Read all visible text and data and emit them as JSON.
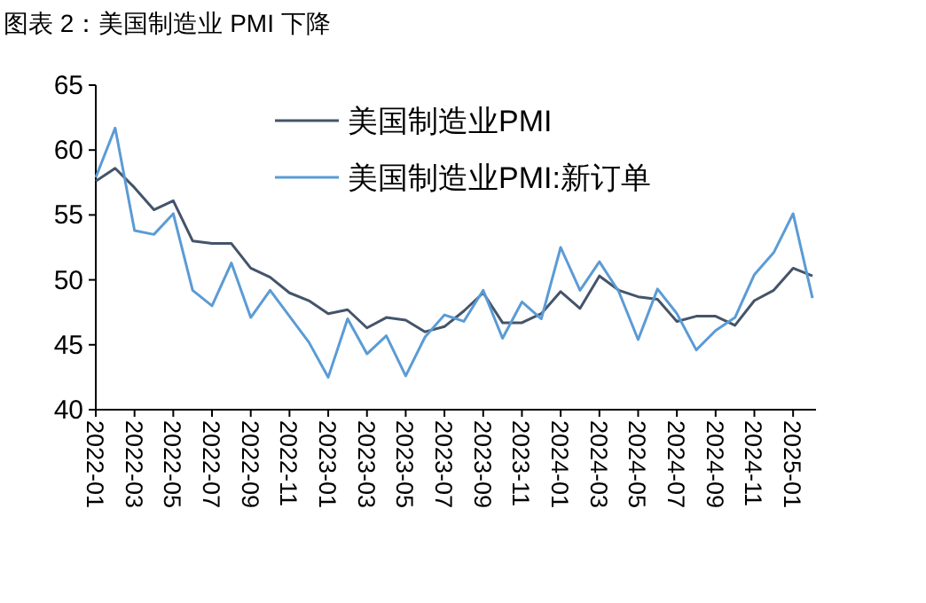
{
  "chart_data": {
    "type": "line",
    "title": "图表 2：美国制造业 PMI 下降",
    "categories": [
      "2022-01",
      null,
      "2022-03",
      null,
      "2022-05",
      null,
      "2022-07",
      null,
      "2022-09",
      null,
      "2022-11",
      null,
      "2023-01",
      null,
      "2023-03",
      null,
      "2023-05",
      null,
      "2023-07",
      null,
      "2023-09",
      null,
      "2023-11",
      null,
      "2024-01",
      null,
      "2024-03",
      null,
      "2024-05",
      null,
      "2024-07",
      null,
      "2024-09",
      null,
      "2024-11",
      null,
      "2025-01",
      null
    ],
    "series": [
      {
        "name": "美国制造业PMI",
        "color": "#44546a",
        "values": [
          57.6,
          58.6,
          57.1,
          55.4,
          56.1,
          53.0,
          52.8,
          52.8,
          50.9,
          50.2,
          49.0,
          48.4,
          47.4,
          47.7,
          46.3,
          47.1,
          46.9,
          46.0,
          46.4,
          47.6,
          49.0,
          46.7,
          46.7,
          47.4,
          49.1,
          47.8,
          50.3,
          49.2,
          48.7,
          48.5,
          46.8,
          47.2,
          47.2,
          46.5,
          48.4,
          49.2,
          50.9,
          50.3
        ]
      },
      {
        "name": "美国制造业PMI:新订单",
        "color": "#5b9bd5",
        "values": [
          57.9,
          61.7,
          53.8,
          53.5,
          55.1,
          49.2,
          48.0,
          51.3,
          47.1,
          49.2,
          47.2,
          45.2,
          42.5,
          47.0,
          44.3,
          45.7,
          42.6,
          45.6,
          47.3,
          46.8,
          49.2,
          45.5,
          48.3,
          47.0,
          52.5,
          49.2,
          51.4,
          49.1,
          45.4,
          49.3,
          47.4,
          44.6,
          46.1,
          47.1,
          50.4,
          52.1,
          55.1,
          48.6
        ]
      }
    ],
    "ylim": [
      40,
      65
    ],
    "yticks": [
      40,
      45,
      50,
      55,
      60,
      65
    ],
    "grid": false,
    "legend": "top right"
  }
}
